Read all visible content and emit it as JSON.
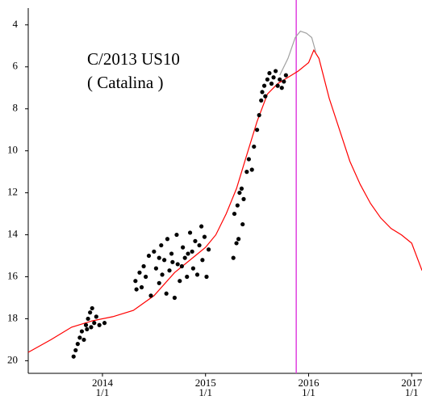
{
  "chart_data": {
    "type": "scatter",
    "title": [
      "C/2013 US10",
      "( Catalina )"
    ],
    "xlim": [
      2013.28,
      2017.1
    ],
    "xticks": [
      {
        "value": 2014,
        "label": [
          "2014",
          "1/1"
        ]
      },
      {
        "value": 2015,
        "label": [
          "2015",
          "1/1"
        ]
      },
      {
        "value": 2016,
        "label": [
          "2016",
          "1/1"
        ]
      },
      {
        "value": 2017,
        "label": [
          "2017",
          "1/1"
        ]
      }
    ],
    "ylim": [
      20.6,
      3.2
    ],
    "yticks": [
      4,
      6,
      8,
      10,
      12,
      14,
      16,
      18,
      20
    ],
    "marker_line": {
      "x": 2015.88,
      "color": "#e040e0"
    },
    "curves": [
      {
        "color": "#ff0000",
        "x": [
          2013.28,
          2013.5,
          2013.7,
          2013.9,
          2014.1,
          2014.3,
          2014.5,
          2014.7,
          2014.9,
          2015.0,
          2015.1,
          2015.2,
          2015.3,
          2015.4,
          2015.5,
          2015.6,
          2015.7,
          2015.8,
          2015.9,
          2016.0,
          2016.05,
          2016.1,
          2016.2,
          2016.3,
          2016.4,
          2016.5,
          2016.6,
          2016.7,
          2016.8,
          2016.9,
          2017.0,
          2017.1
        ],
        "values": [
          19.6,
          19.0,
          18.4,
          18.1,
          17.9,
          17.6,
          16.9,
          15.8,
          15.0,
          14.6,
          14.0,
          13.0,
          11.8,
          10.2,
          8.6,
          7.3,
          6.8,
          6.5,
          6.2,
          5.8,
          5.2,
          5.6,
          7.5,
          9.0,
          10.5,
          11.6,
          12.5,
          13.2,
          13.7,
          14.0,
          14.4,
          15.7
        ]
      },
      {
        "color": "#a0a0a0",
        "x": [
          2015.72,
          2015.8,
          2015.87,
          2015.92,
          2015.98,
          2016.03,
          2016.07
        ],
        "values": [
          6.4,
          5.6,
          4.6,
          4.3,
          4.4,
          4.6,
          5.3
        ]
      }
    ],
    "points": {
      "color": "#000000",
      "x": [
        2013.72,
        2013.74,
        2013.76,
        2013.78,
        2013.8,
        2013.82,
        2013.84,
        2013.86,
        2013.88,
        2013.9,
        2013.92,
        2013.94,
        2013.97,
        2014.02,
        2013.85,
        2013.89,
        2014.32,
        2014.33,
        2014.36,
        2014.38,
        2014.4,
        2014.42,
        2014.45,
        2014.47,
        2014.5,
        2014.52,
        2014.55,
        2014.57,
        2014.6,
        2014.62,
        2014.63,
        2014.65,
        2014.67,
        2014.7,
        2014.72,
        2014.73,
        2014.75,
        2014.78,
        2014.8,
        2014.82,
        2014.85,
        2014.87,
        2014.88,
        2014.9,
        2014.92,
        2014.94,
        2014.96,
        2014.97,
        2014.99,
        2015.01,
        2015.03,
        2014.55,
        2014.68,
        2014.83,
        2014.58,
        2014.77,
        2015.27,
        2015.3,
        2015.28,
        2015.31,
        2015.33,
        2015.35,
        2015.37,
        2015.4,
        2015.42,
        2015.45,
        2015.47,
        2015.5,
        2015.52,
        2015.54,
        2015.55,
        2015.57,
        2015.58,
        2015.6,
        2015.62,
        2015.64,
        2015.66,
        2015.68,
        2015.7,
        2015.72,
        2015.74,
        2015.76,
        2015.78,
        2015.36,
        2015.32
      ],
      "y": [
        19.8,
        19.5,
        19.2,
        18.9,
        18.6,
        19.0,
        18.3,
        18.0,
        17.7,
        17.5,
        18.2,
        17.9,
        18.3,
        18.2,
        18.5,
        18.4,
        16.2,
        16.6,
        15.8,
        16.5,
        15.5,
        16.0,
        15.0,
        16.9,
        14.8,
        15.6,
        16.3,
        14.5,
        15.2,
        16.8,
        14.2,
        15.7,
        14.9,
        17.0,
        14.0,
        15.4,
        16.2,
        14.6,
        15.1,
        16.0,
        13.9,
        14.8,
        15.6,
        14.3,
        15.9,
        14.5,
        13.6,
        15.2,
        14.1,
        16.0,
        14.7,
        15.1,
        15.3,
        14.9,
        15.9,
        15.5,
        15.1,
        14.4,
        13.0,
        12.6,
        12.0,
        11.8,
        12.3,
        11.0,
        10.4,
        10.9,
        9.8,
        9.0,
        8.3,
        7.6,
        7.2,
        6.9,
        7.4,
        6.6,
        6.3,
        6.8,
        6.5,
        6.2,
        6.9,
        6.6,
        7.0,
        6.7,
        6.4,
        13.5,
        14.2
      ]
    }
  }
}
